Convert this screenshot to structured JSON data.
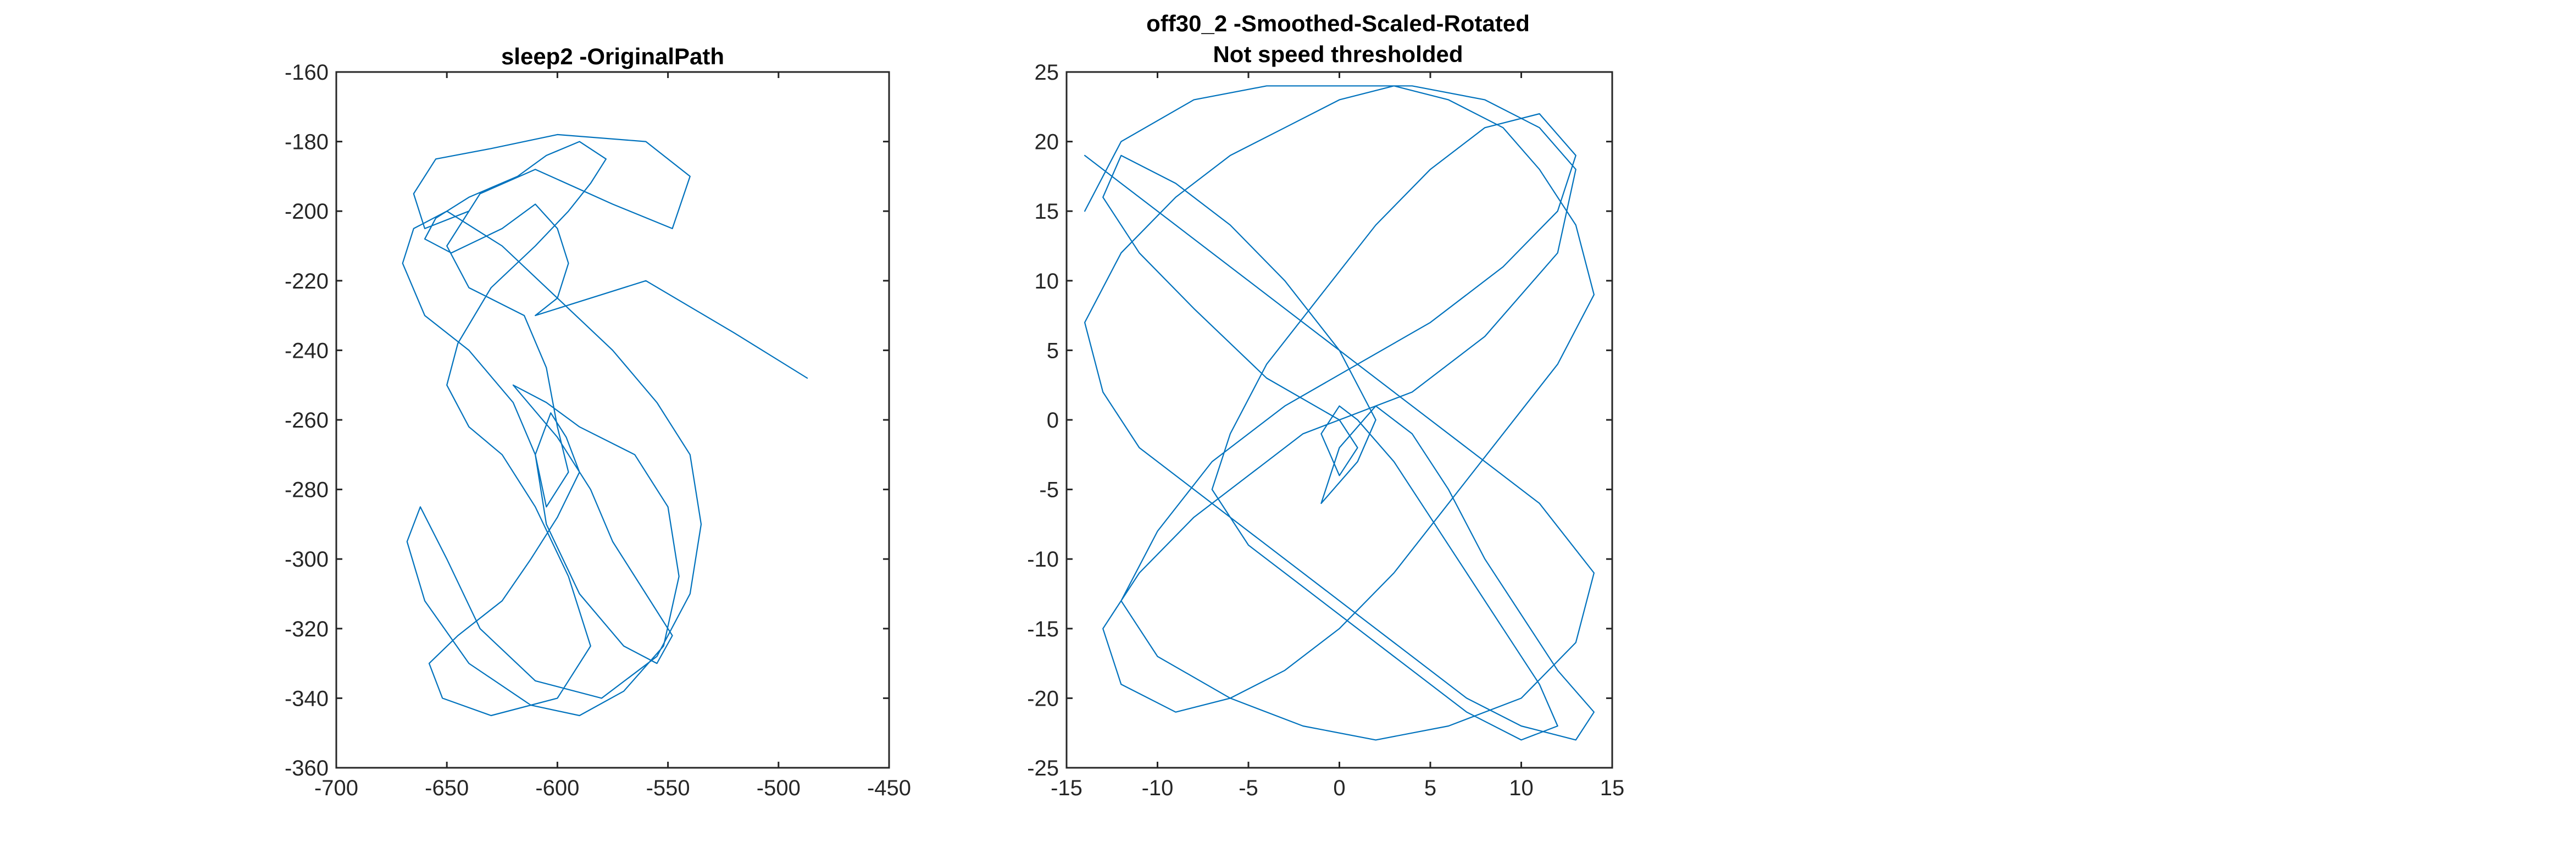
{
  "figure": {
    "background": "#ffffff",
    "line_color": "#0072BD"
  },
  "chart_data": [
    {
      "type": "line",
      "title": [
        "sleep2 -OriginalPath"
      ],
      "xlabel": "",
      "ylabel": "",
      "xlim": [
        -700,
        -450
      ],
      "ylim": [
        -360,
        -160
      ],
      "xticks": [
        -700,
        -650,
        -600,
        -550,
        -500,
        -450
      ],
      "yticks": [
        -360,
        -340,
        -320,
        -300,
        -280,
        -260,
        -240,
        -220,
        -200,
        -180,
        -160
      ],
      "grid": false,
      "series": [
        {
          "values_note": "",
          "x": [
            -640,
            -660,
            -665,
            -655,
            -630,
            -600,
            -560,
            -540,
            -548,
            -575,
            -610,
            -635,
            -650,
            -640,
            -615,
            -605,
            -600,
            -595,
            -605,
            -610,
            -620,
            -640,
            -660,
            -670,
            -665,
            -650,
            -625,
            -600,
            -575,
            -555,
            -540,
            -535,
            -540,
            -555,
            -580,
            -610,
            -635,
            -650,
            -662,
            -668,
            -660,
            -640,
            -612,
            -590,
            -570,
            -552,
            -545,
            -550,
            -565,
            -590,
            -605,
            -620,
            -600,
            -585,
            -575,
            -560,
            -548,
            -555,
            -570,
            -590,
            -605,
            -610,
            -603,
            -596,
            -590,
            -600,
            -612,
            -625,
            -645,
            -658,
            -652,
            -630,
            -600,
            -585,
            -595,
            -610,
            -625,
            -640,
            -650,
            -645,
            -630,
            -610,
            -595,
            -585,
            -578,
            -590,
            -605,
            -618,
            -640,
            -655,
            -660,
            -648,
            -625,
            -610,
            -600,
            -595,
            -600,
            -610,
            -560,
            -520,
            -487
          ],
          "y": [
            -200,
            -205,
            -195,
            -185,
            -182,
            -178,
            -180,
            -190,
            -205,
            -198,
            -188,
            -195,
            -210,
            -222,
            -230,
            -245,
            -262,
            -275,
            -285,
            -270,
            -255,
            -240,
            -230,
            -215,
            -205,
            -200,
            -210,
            -225,
            -240,
            -255,
            -270,
            -290,
            -310,
            -328,
            -340,
            -335,
            -320,
            -300,
            -285,
            -295,
            -312,
            -330,
            -342,
            -345,
            -338,
            -325,
            -305,
            -285,
            -270,
            -262,
            -255,
            -250,
            -265,
            -280,
            -295,
            -310,
            -322,
            -330,
            -325,
            -310,
            -290,
            -270,
            -258,
            -265,
            -275,
            -288,
            -300,
            -312,
            -322,
            -330,
            -340,
            -345,
            -340,
            -325,
            -305,
            -285,
            -270,
            -262,
            -250,
            -238,
            -222,
            -210,
            -200,
            -192,
            -185,
            -180,
            -184,
            -190,
            -196,
            -202,
            -208,
            -212,
            -205,
            -198,
            -205,
            -215,
            -225,
            -230,
            -220,
            -235,
            -248
          ]
        }
      ]
    },
    {
      "type": "line",
      "title": [
        "off30_2 -Smoothed-Scaled-Rotated",
        "Not speed thresholded"
      ],
      "xlabel": "",
      "ylabel": "",
      "xlim": [
        -15,
        15
      ],
      "ylim": [
        -25,
        25
      ],
      "xticks": [
        -15,
        -10,
        -5,
        0,
        5,
        10,
        15
      ],
      "yticks": [
        -25,
        -20,
        -15,
        -10,
        -5,
        0,
        5,
        10,
        15,
        20,
        25
      ],
      "grid": false,
      "series": [
        {
          "values_note": "",
          "x": [
            -14,
            -12,
            -8,
            -4,
            0,
            4,
            8,
            11,
            13,
            12,
            8,
            4,
            0,
            -4,
            -8,
            -11,
            -13,
            -12,
            -9,
            -6,
            -3,
            0,
            2,
            1,
            -1,
            0,
            2,
            4,
            6,
            8,
            10,
            12,
            14,
            13,
            10,
            7,
            4,
            1,
            -2,
            -5,
            -8,
            -11,
            -13,
            -14,
            -12,
            -9,
            -6,
            -3,
            0,
            3,
            6,
            9,
            11,
            13,
            14,
            12,
            9,
            6,
            3,
            0,
            -3,
            -6,
            -9,
            -12,
            -13,
            -11,
            -8,
            -5,
            -2,
            0,
            1,
            0,
            -1,
            0,
            1,
            3,
            5,
            7,
            9,
            11,
            12,
            10,
            7,
            4,
            1,
            -2,
            -5,
            -7,
            -6,
            -4,
            -1,
            2,
            5,
            8,
            11,
            13,
            12,
            9,
            5,
            1,
            -3,
            -7,
            -10,
            -12,
            -10,
            -6,
            -2,
            2,
            6,
            10,
            13,
            14,
            11,
            7,
            3,
            -1,
            -5,
            -9,
            -12,
            -14
          ],
          "y": [
            15,
            20,
            23,
            24,
            24,
            24,
            23,
            21,
            18,
            12,
            6,
            2,
            0,
            3,
            8,
            12,
            16,
            19,
            17,
            14,
            10,
            5,
            0,
            -3,
            -6,
            -2,
            1,
            -1,
            -5,
            -10,
            -14,
            -18,
            -21,
            -23,
            -22,
            -20,
            -17,
            -14,
            -11,
            -8,
            -5,
            -2,
            2,
            7,
            12,
            16,
            19,
            21,
            23,
            24,
            23,
            21,
            18,
            14,
            9,
            4,
            -1,
            -6,
            -11,
            -15,
            -18,
            -20,
            -21,
            -19,
            -15,
            -11,
            -7,
            -4,
            -1,
            0,
            -2,
            -4,
            -1,
            1,
            0,
            -3,
            -7,
            -11,
            -15,
            -19,
            -22,
            -23,
            -21,
            -18,
            -15,
            -12,
            -9,
            -5,
            -1,
            4,
            9,
            14,
            18,
            21,
            22,
            19,
            15,
            11,
            7,
            4,
            1,
            -3,
            -8,
            -13,
            -17,
            -20,
            -22,
            -23,
            -22,
            -20,
            -16,
            -11,
            -6,
            -2,
            2,
            6,
            10,
            14,
            17,
            19
          ]
        }
      ]
    }
  ]
}
